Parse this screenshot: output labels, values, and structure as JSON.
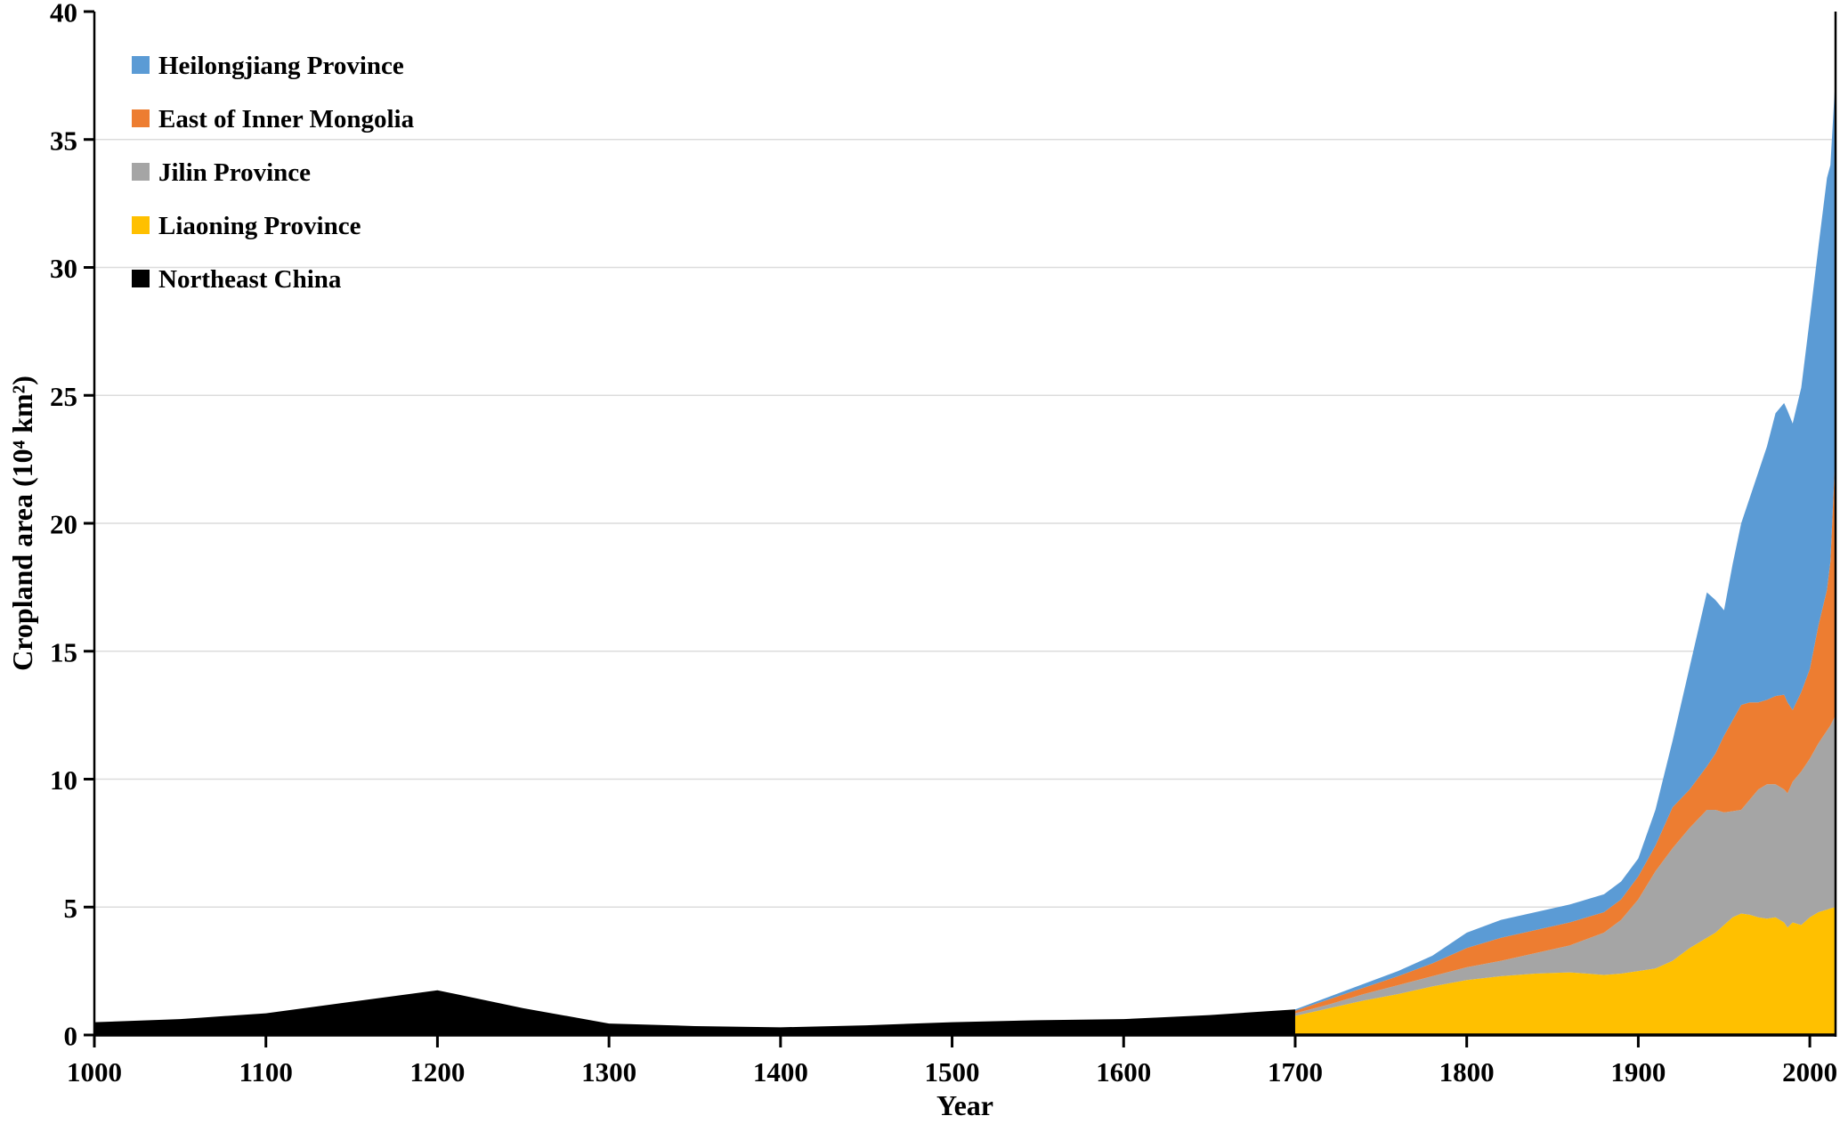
{
  "page": {
    "background": "#FFFFFF"
  },
  "chart_data": {
    "type": "area",
    "stacked": true,
    "title": "",
    "xlabel": "Year",
    "ylabel": "Cropland area (10⁴ km²)",
    "xlim": [
      1000,
      2015
    ],
    "ylim": [
      0,
      40
    ],
    "xticks": [
      1000,
      1100,
      1200,
      1300,
      1400,
      1500,
      1600,
      1700,
      1800,
      1900,
      2000
    ],
    "yticks": [
      0,
      5,
      10,
      15,
      20,
      25,
      30,
      35,
      40
    ],
    "grid": "horizontal",
    "gridline_color": "#DCDCDC",
    "axis_color": "#000000",
    "legend_position": "top-left",
    "pre_1700_series": {
      "name": "Northeast China",
      "color": "#000000",
      "years": [
        1000,
        1050,
        1100,
        1150,
        1200,
        1250,
        1300,
        1350,
        1400,
        1450,
        1500,
        1550,
        1600,
        1650,
        1700
      ],
      "values": [
        0.5,
        0.62,
        0.85,
        1.3,
        1.75,
        1.05,
        0.45,
        0.35,
        0.3,
        0.38,
        0.5,
        0.58,
        0.62,
        0.78,
        1.0
      ]
    },
    "stacked_series": {
      "years": [
        1700,
        1720,
        1740,
        1760,
        1780,
        1800,
        1820,
        1840,
        1860,
        1880,
        1890,
        1900,
        1910,
        1920,
        1930,
        1940,
        1945,
        1950,
        1955,
        1960,
        1965,
        1970,
        1975,
        1980,
        1985,
        1987,
        1990,
        1995,
        2000,
        2005,
        2010,
        2012,
        2015
      ],
      "series": [
        {
          "name": "Liaoning Province",
          "color": "#FFC000",
          "values": [
            0.75,
            1.05,
            1.35,
            1.6,
            1.9,
            2.15,
            2.3,
            2.4,
            2.45,
            2.35,
            2.4,
            2.5,
            2.6,
            2.9,
            3.4,
            3.8,
            4.0,
            4.3,
            4.6,
            4.75,
            4.7,
            4.6,
            4.55,
            4.6,
            4.4,
            4.2,
            4.4,
            4.3,
            4.6,
            4.8,
            4.9,
            4.95,
            5.0
          ]
        },
        {
          "name": "Jilin Province",
          "color": "#A5A5A5",
          "values": [
            0.1,
            0.15,
            0.25,
            0.35,
            0.4,
            0.5,
            0.6,
            0.8,
            1.05,
            1.65,
            2.1,
            2.8,
            3.8,
            4.4,
            4.7,
            5.0,
            4.8,
            4.4,
            4.15,
            4.05,
            4.5,
            5.0,
            5.25,
            5.2,
            5.2,
            5.25,
            5.5,
            6.0,
            6.2,
            6.6,
            7.0,
            7.15,
            7.5
          ]
        },
        {
          "name": "East of Inner Mongolia",
          "color": "#ED7D31",
          "values": [
            0.1,
            0.2,
            0.25,
            0.35,
            0.5,
            0.75,
            0.9,
            0.9,
            0.9,
            0.8,
            0.8,
            0.9,
            1.0,
            1.6,
            1.5,
            1.7,
            2.2,
            3.0,
            3.55,
            4.1,
            3.8,
            3.4,
            3.3,
            3.45,
            3.7,
            3.55,
            2.8,
            3.1,
            3.5,
            4.6,
            5.5,
            6.4,
            10.4
          ]
        },
        {
          "name": "Heilongjiang Province",
          "color": "#5B9BD5",
          "values": [
            0.05,
            0.1,
            0.15,
            0.2,
            0.3,
            0.6,
            0.7,
            0.7,
            0.7,
            0.7,
            0.7,
            0.7,
            1.4,
            2.6,
            4.8,
            6.8,
            6.0,
            4.9,
            6.1,
            7.1,
            8.0,
            9.0,
            9.9,
            11.05,
            11.4,
            11.4,
            11.2,
            11.9,
            13.7,
            14.8,
            16.1,
            15.5,
            14.6
          ]
        }
      ]
    },
    "legend": [
      {
        "label": "Heilongjiang Province",
        "color": "#5B9BD5"
      },
      {
        "label": "East of Inner Mongolia",
        "color": "#ED7D31"
      },
      {
        "label": "Jilin Province",
        "color": "#A5A5A5"
      },
      {
        "label": "Liaoning Province",
        "color": "#FFC000"
      },
      {
        "label": "Northeast China",
        "color": "#000000"
      }
    ]
  }
}
